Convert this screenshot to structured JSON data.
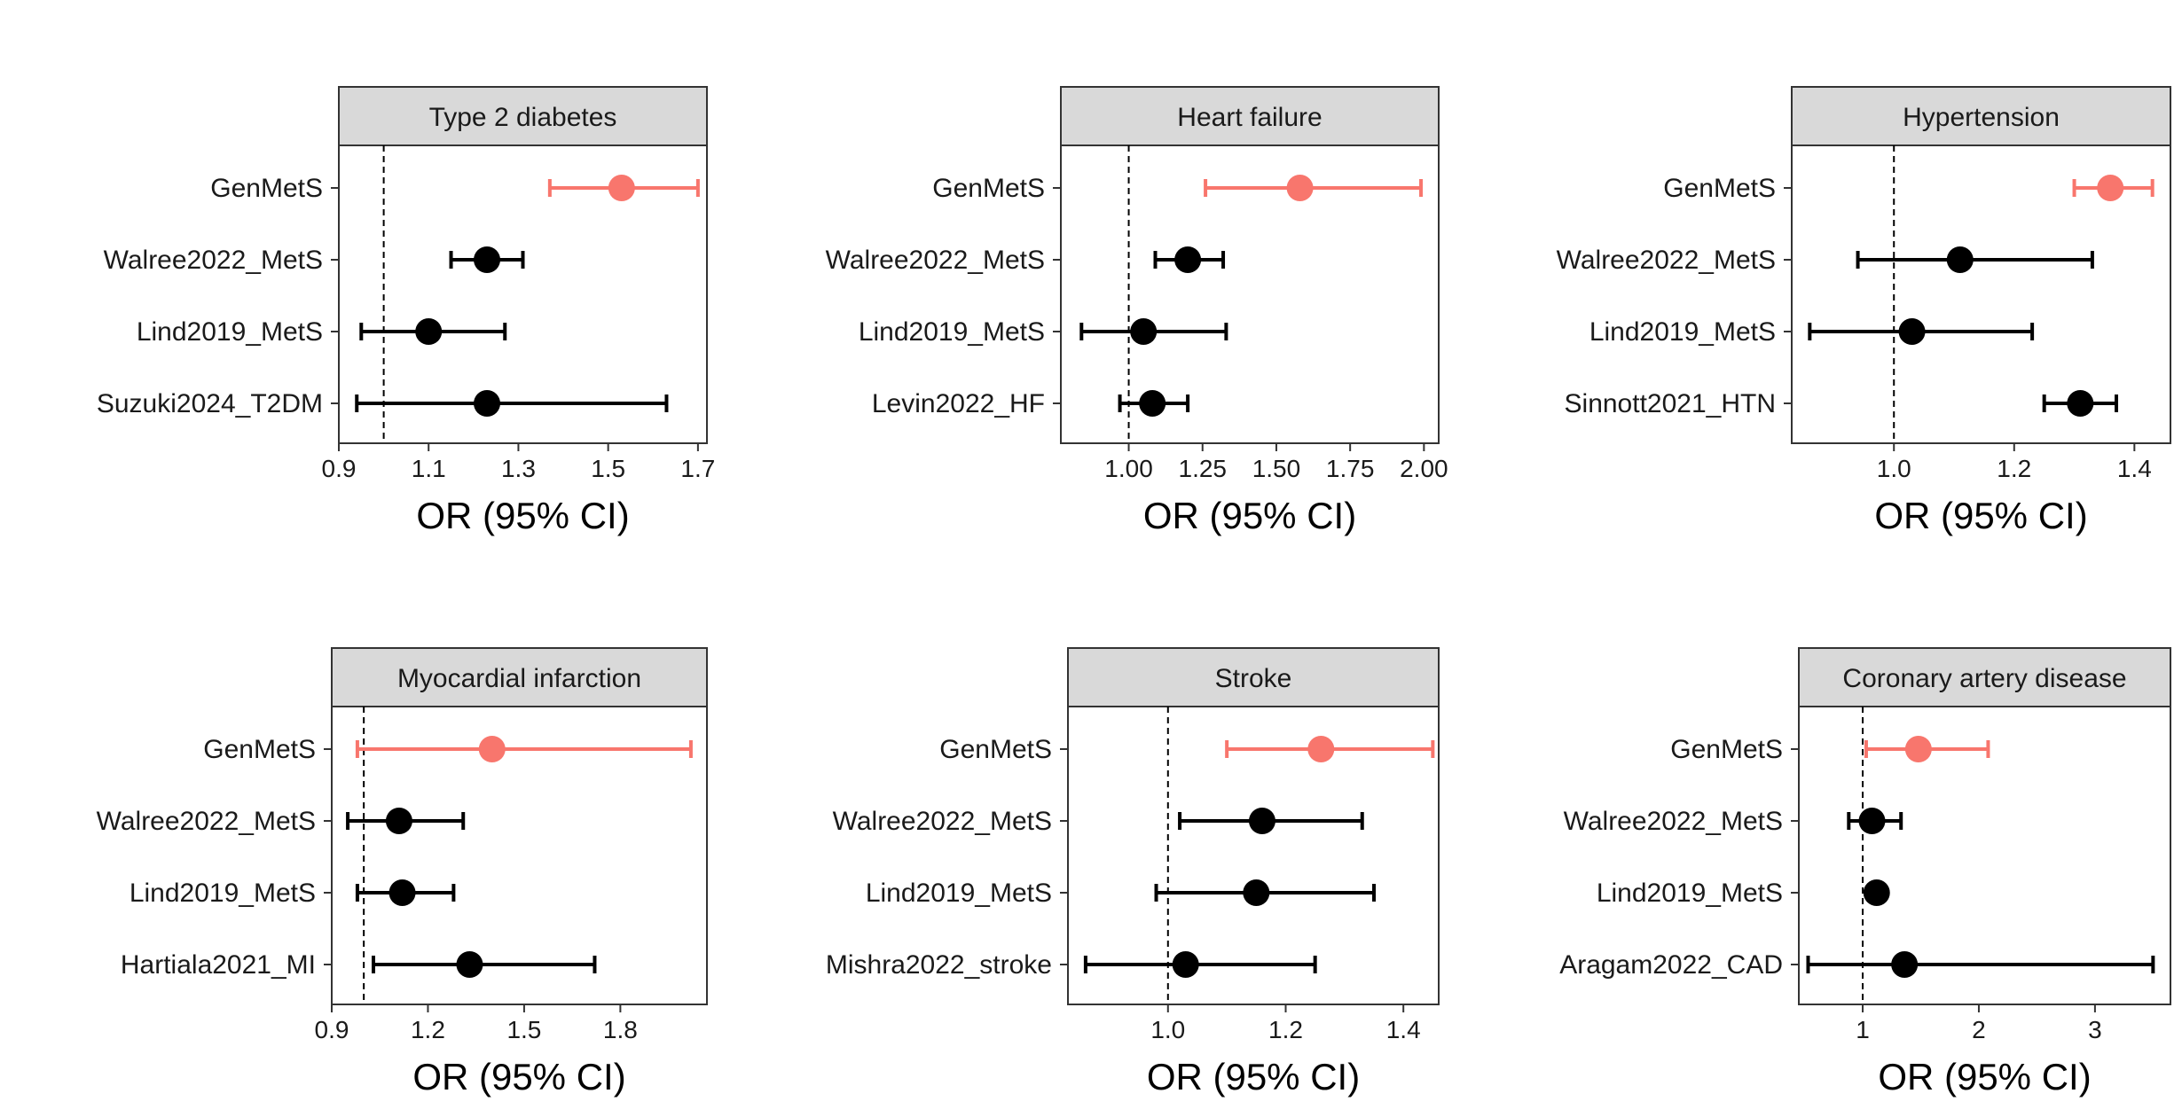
{
  "chart_data": [
    {
      "type": "forest",
      "title": "Type 2 diabetes",
      "xlabel": "OR (95% CI)",
      "xlim": [
        0.9,
        1.72
      ],
      "xticks": [
        0.9,
        1.1,
        1.3,
        1.5,
        1.7
      ],
      "xtick_labels": [
        "0.9",
        "1.1",
        "1.3",
        "1.5",
        "1.7"
      ],
      "reference_line": 1.0,
      "studies": [
        {
          "label": "GenMetS",
          "or": 1.53,
          "lo": 1.37,
          "hi": 1.7,
          "color": "#F8766D"
        },
        {
          "label": "Walree2022_MetS",
          "or": 1.23,
          "lo": 1.15,
          "hi": 1.31,
          "color": "#000000"
        },
        {
          "label": "Lind2019_MetS",
          "or": 1.1,
          "lo": 0.95,
          "hi": 1.27,
          "color": "#000000"
        },
        {
          "label": "Suzuki2024_T2DM",
          "or": 1.23,
          "lo": 0.94,
          "hi": 1.63,
          "color": "#000000"
        }
      ]
    },
    {
      "type": "forest",
      "title": "Heart failure",
      "xlabel": "OR (95% CI)",
      "xlim": [
        0.77,
        2.05
      ],
      "xticks": [
        1.0,
        1.25,
        1.5,
        1.75,
        2.0
      ],
      "xtick_labels": [
        "1.00",
        "1.25",
        "1.50",
        "1.75",
        "2.00"
      ],
      "reference_line": 1.0,
      "studies": [
        {
          "label": "GenMetS",
          "or": 1.58,
          "lo": 1.26,
          "hi": 1.99,
          "color": "#F8766D"
        },
        {
          "label": "Walree2022_MetS",
          "or": 1.2,
          "lo": 1.09,
          "hi": 1.32,
          "color": "#000000"
        },
        {
          "label": "Lind2019_MetS",
          "or": 1.05,
          "lo": 0.84,
          "hi": 1.33,
          "color": "#000000"
        },
        {
          "label": "Levin2022_HF",
          "or": 1.08,
          "lo": 0.97,
          "hi": 1.2,
          "color": "#000000"
        }
      ]
    },
    {
      "type": "forest",
      "title": "Hypertension",
      "xlabel": "OR (95% CI)",
      "xlim": [
        0.83,
        1.46
      ],
      "xticks": [
        1.0,
        1.2,
        1.4
      ],
      "xtick_labels": [
        "1.0",
        "1.2",
        "1.4"
      ],
      "reference_line": 1.0,
      "studies": [
        {
          "label": "GenMetS",
          "or": 1.36,
          "lo": 1.3,
          "hi": 1.43,
          "color": "#F8766D"
        },
        {
          "label": "Walree2022_MetS",
          "or": 1.11,
          "lo": 0.94,
          "hi": 1.33,
          "color": "#000000"
        },
        {
          "label": "Lind2019_MetS",
          "or": 1.03,
          "lo": 0.86,
          "hi": 1.23,
          "color": "#000000"
        },
        {
          "label": "Sinnott2021_HTN",
          "or": 1.31,
          "lo": 1.25,
          "hi": 1.37,
          "color": "#000000"
        }
      ]
    },
    {
      "type": "forest",
      "title": "Myocardial infarction",
      "xlabel": "OR (95% CI)",
      "xlim": [
        0.9,
        2.07
      ],
      "xticks": [
        0.9,
        1.2,
        1.5,
        1.8
      ],
      "xtick_labels": [
        "0.9",
        "1.2",
        "1.5",
        "1.8"
      ],
      "reference_line": 1.0,
      "studies": [
        {
          "label": "GenMetS",
          "or": 1.4,
          "lo": 0.98,
          "hi": 2.02,
          "color": "#F8766D"
        },
        {
          "label": "Walree2022_MetS",
          "or": 1.11,
          "lo": 0.95,
          "hi": 1.31,
          "color": "#000000"
        },
        {
          "label": "Lind2019_MetS",
          "or": 1.12,
          "lo": 0.98,
          "hi": 1.28,
          "color": "#000000"
        },
        {
          "label": "Hartiala2021_MI",
          "or": 1.33,
          "lo": 1.03,
          "hi": 1.72,
          "color": "#000000"
        }
      ]
    },
    {
      "type": "forest",
      "title": "Stroke",
      "xlabel": "OR (95% CI)",
      "xlim": [
        0.83,
        1.46
      ],
      "xticks": [
        1.0,
        1.2,
        1.4
      ],
      "xtick_labels": [
        "1.0",
        "1.2",
        "1.4"
      ],
      "reference_line": 1.0,
      "studies": [
        {
          "label": "GenMetS",
          "or": 1.26,
          "lo": 1.1,
          "hi": 1.45,
          "color": "#F8766D"
        },
        {
          "label": "Walree2022_MetS",
          "or": 1.16,
          "lo": 1.02,
          "hi": 1.33,
          "color": "#000000"
        },
        {
          "label": "Lind2019_MetS",
          "or": 1.15,
          "lo": 0.98,
          "hi": 1.35,
          "color": "#000000"
        },
        {
          "label": "Mishra2022_stroke",
          "or": 1.03,
          "lo": 0.86,
          "hi": 1.25,
          "color": "#000000"
        }
      ]
    },
    {
      "type": "forest",
      "title": "Coronary artery disease",
      "xlabel": "OR (95% CI)",
      "xlim": [
        0.45,
        3.65
      ],
      "xticks": [
        1,
        2,
        3
      ],
      "xtick_labels": [
        "1",
        "2",
        "3"
      ],
      "reference_line": 1.0,
      "studies": [
        {
          "label": "GenMetS",
          "or": 1.48,
          "lo": 1.03,
          "hi": 2.08,
          "color": "#F8766D"
        },
        {
          "label": "Walree2022_MetS",
          "or": 1.08,
          "lo": 0.88,
          "hi": 1.33,
          "color": "#000000"
        },
        {
          "label": "Lind2019_MetS",
          "or": 1.12,
          "lo": 1.09,
          "hi": 1.15,
          "color": "#000000"
        },
        {
          "label": "Aragam2022_CAD",
          "or": 1.36,
          "lo": 0.53,
          "hi": 3.5,
          "color": "#000000"
        }
      ]
    }
  ]
}
